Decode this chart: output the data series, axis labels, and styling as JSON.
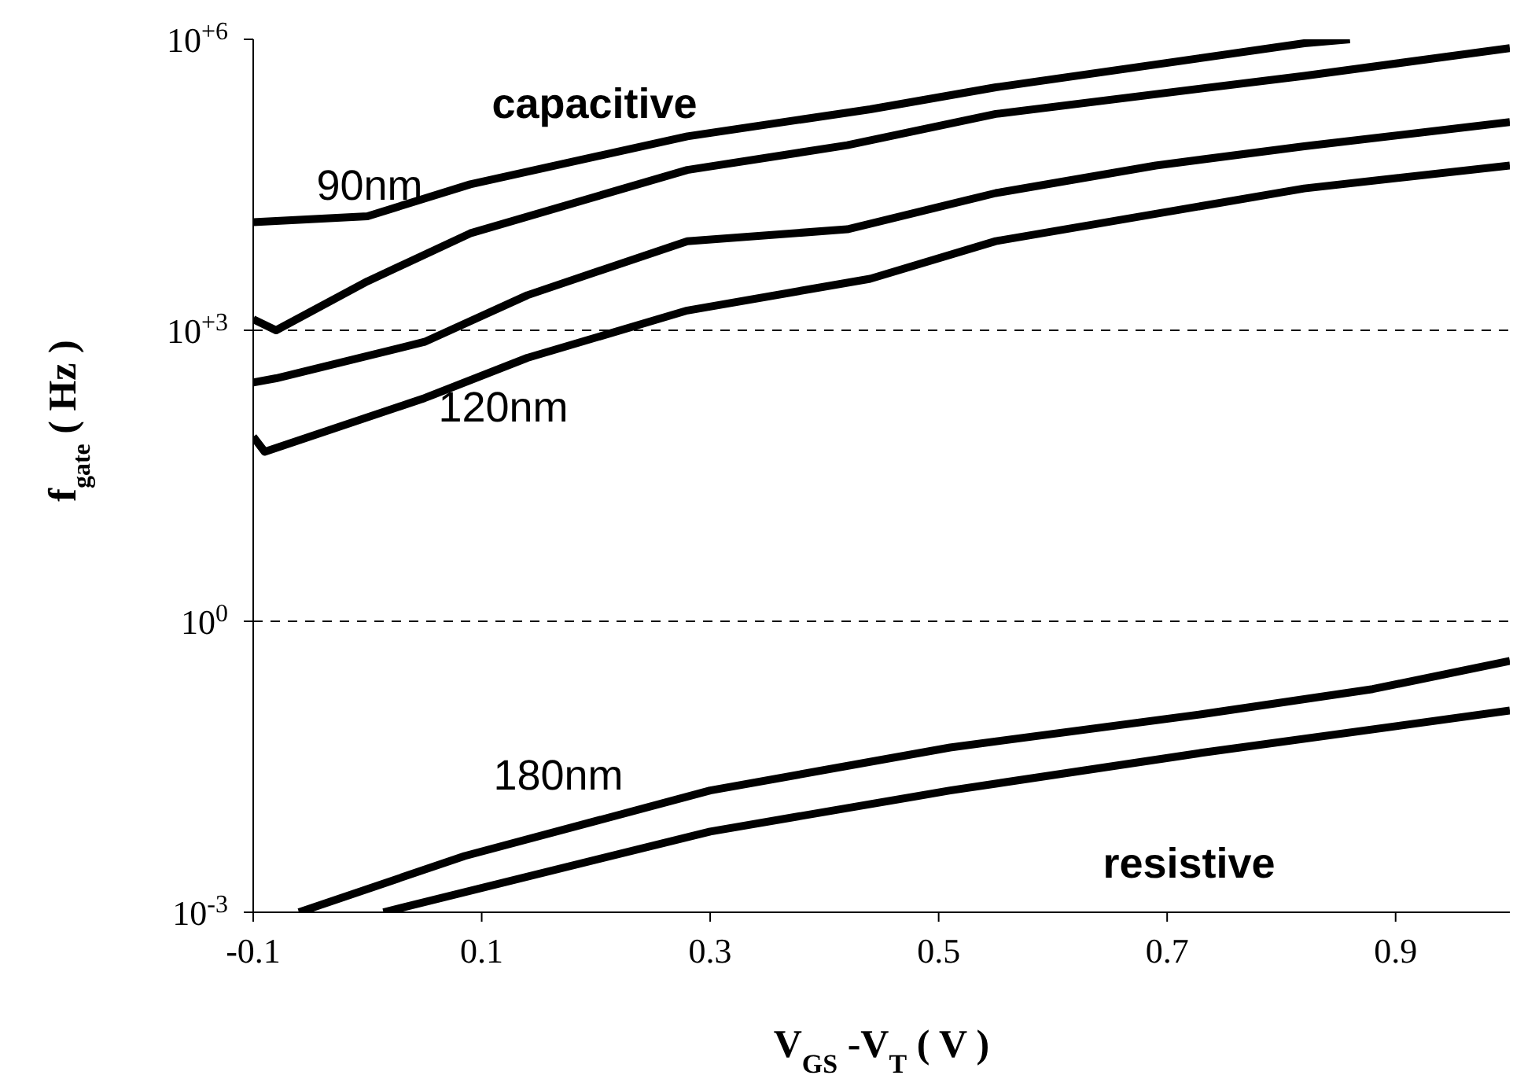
{
  "chart_data": {
    "type": "line",
    "xlabel": "V$_{GS}$ -V$_{T}$ ( V )",
    "ylabel": "f$_{gate}$ ( Hz )",
    "log": "y",
    "grid": false,
    "legend": false,
    "marker": "none",
    "line_style": "solid",
    "xlim": [
      -0.1,
      1.0
    ],
    "xticks": [
      -0.1,
      0.1,
      0.3,
      0.5,
      0.7,
      0.9
    ],
    "ylim": [
      0.001,
      1000000
    ],
    "yticks": [
      {
        "value": 0.001,
        "label": "10$^{-3}$"
      },
      {
        "value": 1,
        "label": "10$^{0}$"
      },
      {
        "value": 1000,
        "label": "10$^{+3}$"
      },
      {
        "value": 1000000,
        "label": "10$^{+6}$"
      }
    ],
    "series": [
      {
        "color": "#000000",
        "x": [
          -0.1,
          0.0,
          0.09,
          0.28,
          0.44,
          0.55,
          0.82,
          0.86
        ],
        "values": [
          13000,
          15000,
          32000,
          100000,
          190000,
          320000,
          910000,
          1000000
        ]
      },
      {
        "color": "#000000",
        "x": [
          -0.1,
          -0.08,
          0.0,
          0.09,
          0.28,
          0.42,
          0.55,
          0.82,
          1.0
        ],
        "values": [
          1300,
          1000,
          3200,
          10000,
          45000,
          81000,
          170000,
          420000,
          810000
        ]
      },
      {
        "color": "#000000",
        "x": [
          -0.1,
          -0.08,
          0.05,
          0.14,
          0.28,
          0.42,
          0.55,
          0.69,
          0.82,
          1.0
        ],
        "values": [
          290,
          320,
          760,
          2300,
          8300,
          11000,
          26000,
          50000,
          79000,
          140000
        ]
      },
      {
        "color": "#000000",
        "x": [
          -0.1,
          -0.09,
          0.05,
          0.14,
          0.28,
          0.44,
          0.55,
          0.82,
          1.0
        ],
        "values": [
          80,
          56,
          200,
          520,
          1600,
          3400,
          8300,
          29000,
          50000
        ]
      },
      {
        "color": "#000000",
        "x": [
          -0.06,
          0.085,
          0.3,
          0.51,
          0.73,
          0.88,
          1.0
        ],
        "values": [
          0.001,
          0.0038,
          0.018,
          0.05,
          0.11,
          0.2,
          0.39
        ]
      },
      {
        "color": "#000000",
        "x": [
          0.014,
          0.3,
          0.51,
          0.73,
          1.0
        ],
        "values": [
          0.001,
          0.0068,
          0.018,
          0.044,
          0.12
        ]
      }
    ],
    "ref_lines": [
      {
        "axis": "y",
        "value": 1000,
        "color": "#000000",
        "line_style": "dashed"
      },
      {
        "axis": "y",
        "value": 1,
        "color": "#000000",
        "line_style": "dashed"
      }
    ],
    "annotations": [
      "capacitive",
      "90nm",
      "120nm",
      "180nm",
      "resistive"
    ]
  }
}
